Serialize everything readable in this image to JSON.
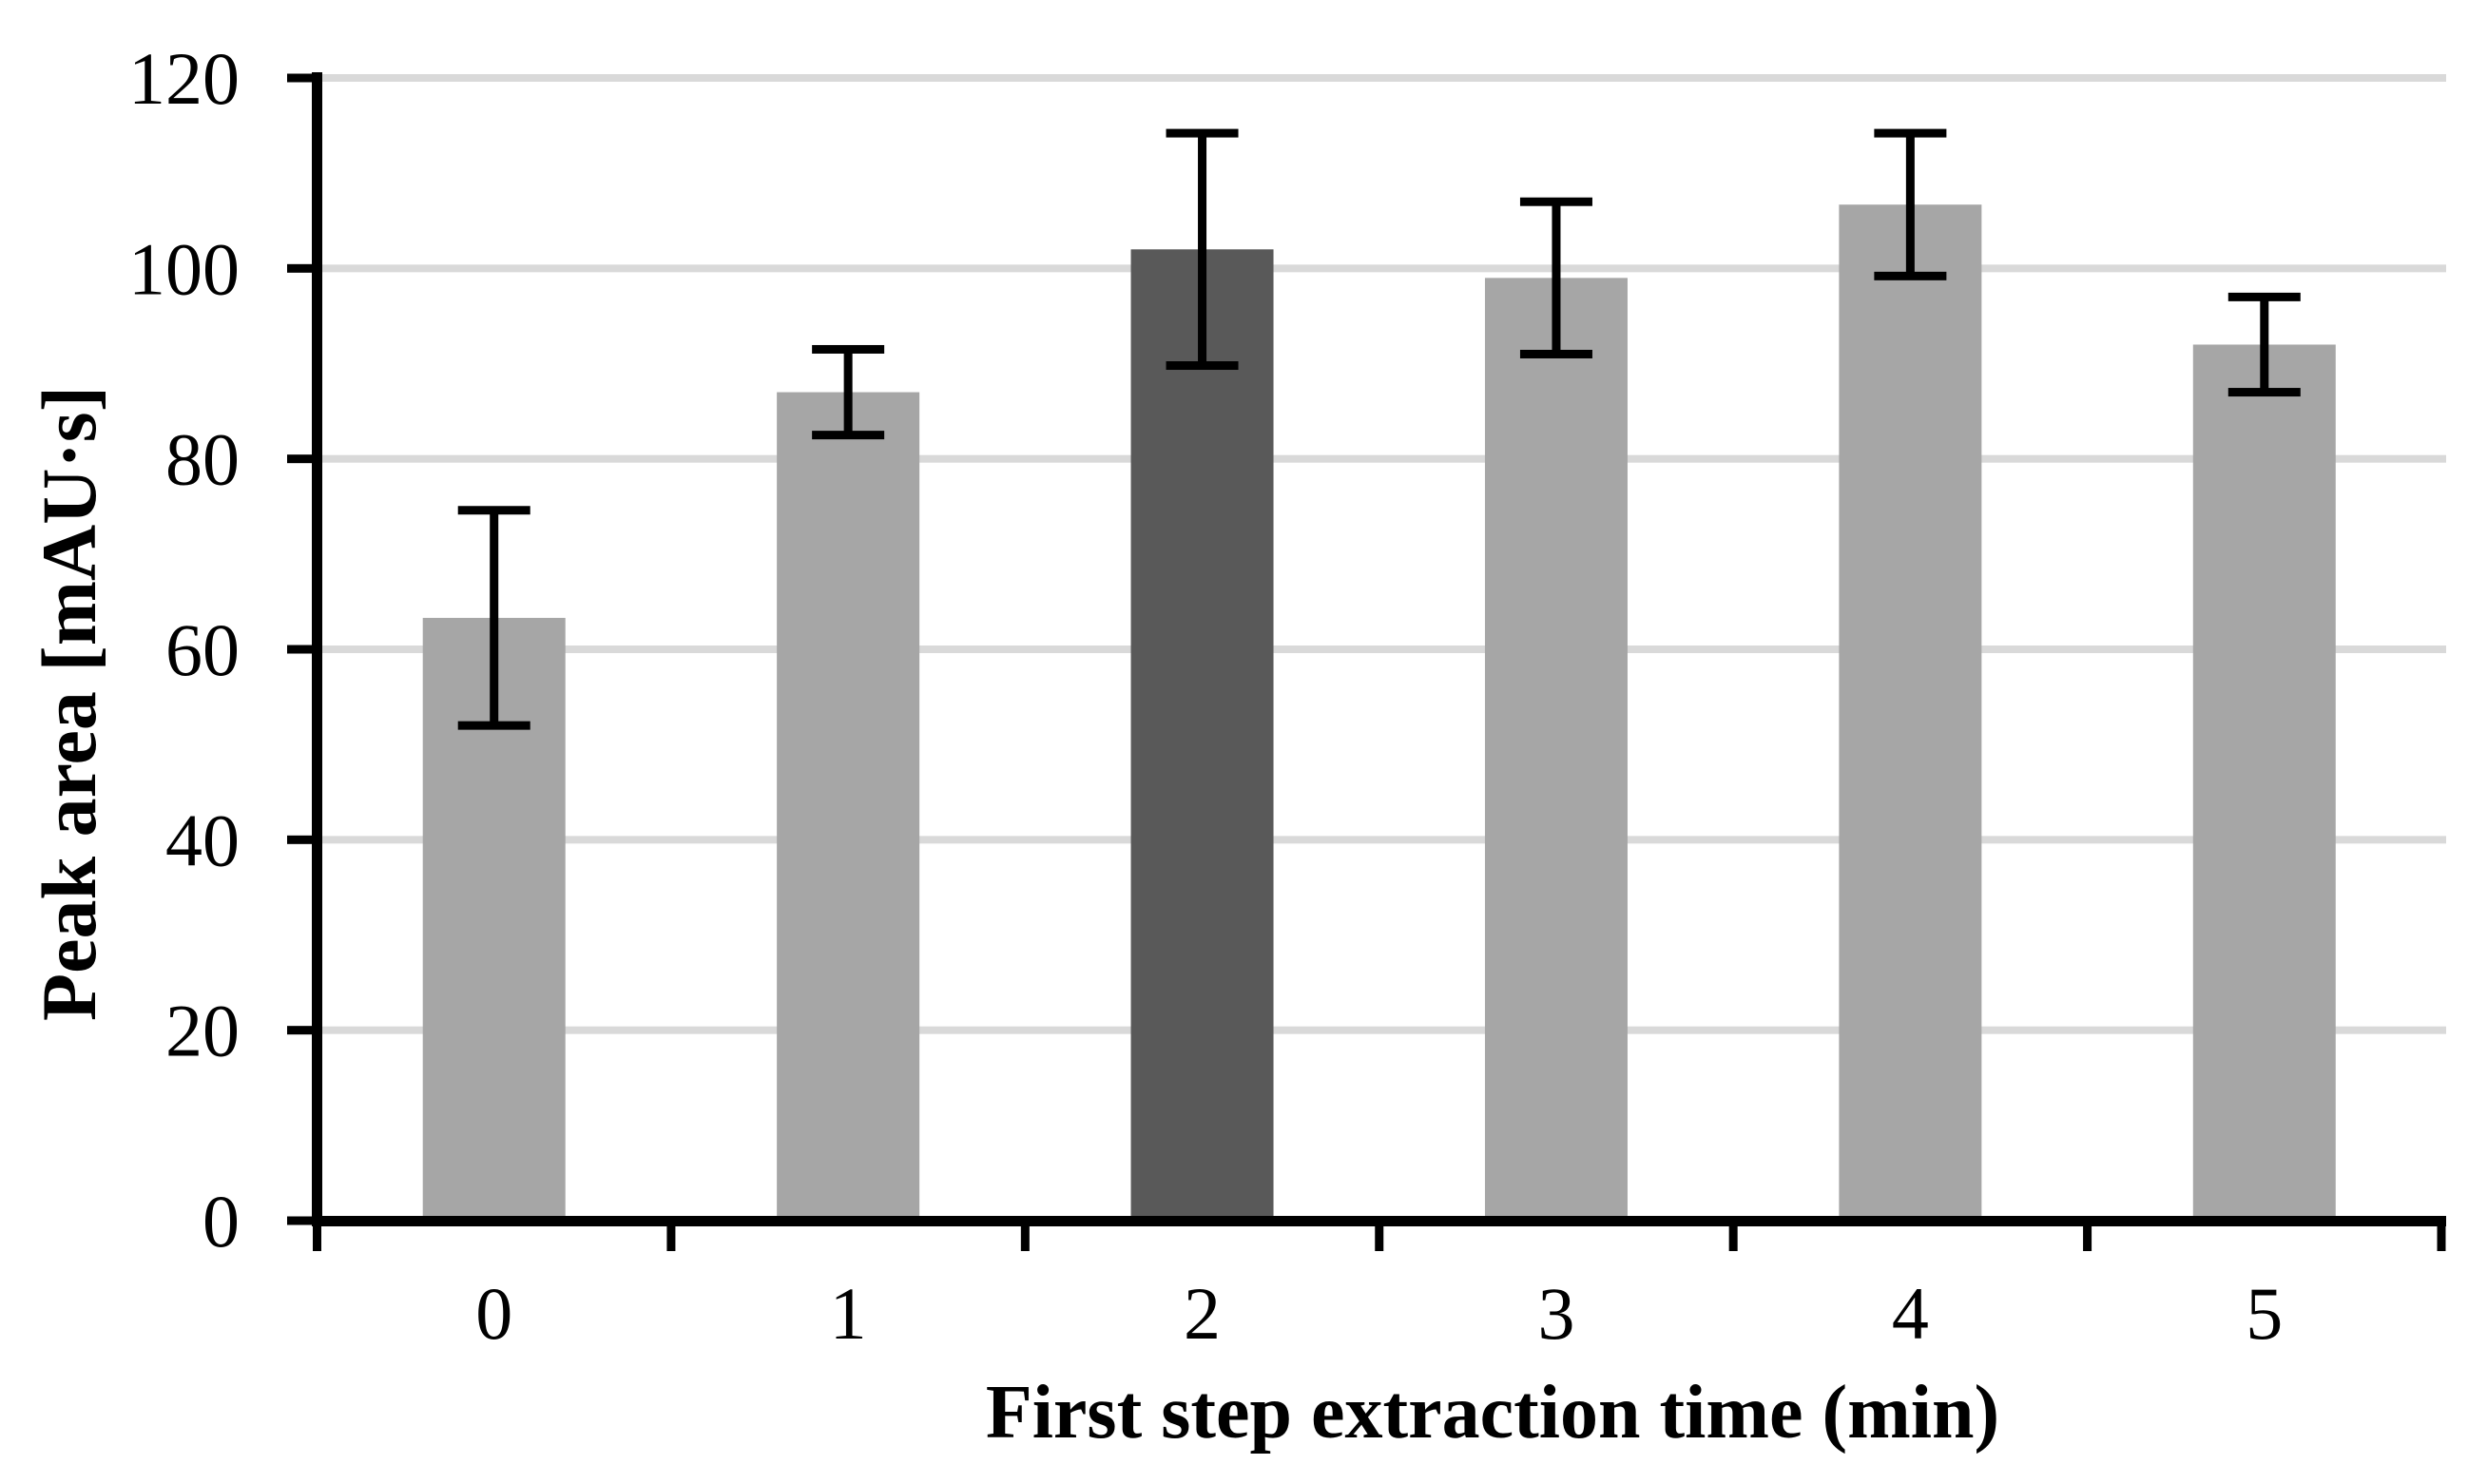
{
  "chart_data": {
    "type": "bar",
    "title": "",
    "xlabel": "First step extraction time (min)",
    "ylabel": "Peak area [mAU·s]",
    "categories": [
      "0",
      "1",
      "2",
      "3",
      "4",
      "5"
    ],
    "series": [
      {
        "name": "Peak area",
        "values": [
          63.3,
          87,
          102,
          99,
          106.7,
          92
        ],
        "error_bars": [
          11.3,
          4.5,
          12.2,
          8,
          7.5,
          5
        ]
      }
    ],
    "highlighted_category_index": 2,
    "ylim": [
      0,
      120
    ],
    "ytick_interval": 20,
    "ytick_labels": [
      "0",
      "20",
      "40",
      "60",
      "80",
      "100",
      "120"
    ],
    "grid": "horizontal",
    "legend": "none",
    "error_bar_style": "both-directions-with-caps",
    "colors": {
      "bar_default": "#a6a6a6",
      "bar_highlight": "#595959",
      "gridline": "#d9d9d9",
      "axis": "#000000",
      "error_bar": "#000000",
      "text": "#000000",
      "background": "#ffffff"
    }
  }
}
